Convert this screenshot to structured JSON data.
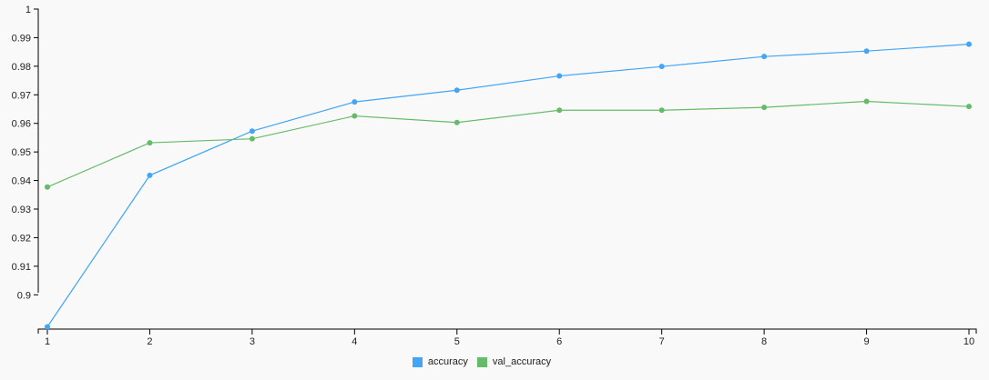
{
  "chart_data": {
    "type": "line",
    "title": "",
    "xlabel": "",
    "ylabel": "",
    "x": [
      1,
      2,
      3,
      4,
      5,
      6,
      7,
      8,
      9,
      10
    ],
    "xlim": [
      1,
      10
    ],
    "ylim": [
      0.888,
      1.0
    ],
    "y_ticks": [
      0.9,
      0.91,
      0.92,
      0.93,
      0.94,
      0.95,
      0.96,
      0.97,
      0.98,
      0.99,
      1
    ],
    "y_tick_labels": [
      "0.9",
      "0.91",
      "0.92",
      "0.93",
      "0.94",
      "0.95",
      "0.96",
      "0.97",
      "0.98",
      "0.99",
      "1"
    ],
    "grid": false,
    "legend_position": "bottom-center",
    "series": [
      {
        "name": "accuracy",
        "color": "#42a5f5",
        "values": [
          0.8888,
          0.9418,
          0.9573,
          0.9675,
          0.9716,
          0.9766,
          0.9799,
          0.9834,
          0.9853,
          0.9877
        ]
      },
      {
        "name": "val_accuracy",
        "color": "#66bb6a",
        "values": [
          0.9377,
          0.9532,
          0.9546,
          0.9626,
          0.9603,
          0.9646,
          0.9646,
          0.9656,
          0.9677,
          0.9659
        ]
      }
    ]
  }
}
